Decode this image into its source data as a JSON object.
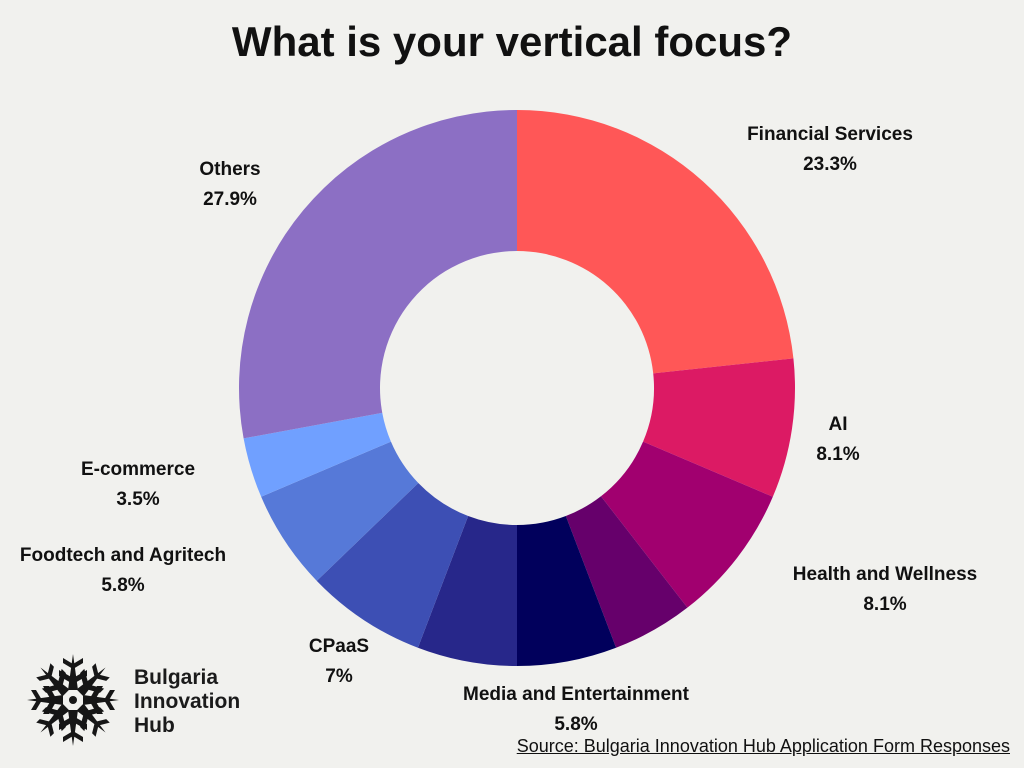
{
  "chart_data": {
    "type": "pie",
    "title": "What is your vertical focus?",
    "labels": [
      "Financial Services",
      "AI",
      "Health and Wellness",
      "",
      "Media and Entertainment",
      "",
      "CPaaS",
      "Foodtech and Agritech",
      "E-commerce",
      "Others"
    ],
    "value_labels": [
      "23.3%",
      "8.1%",
      "8.1%",
      "",
      "5.8%",
      "",
      "7%",
      "5.8%",
      "3.5%",
      "27.9%"
    ],
    "values": [
      23.3,
      8.1,
      8.1,
      4.7,
      5.8,
      5.8,
      7.0,
      5.8,
      3.5,
      27.9
    ],
    "colors": [
      "#ff5757",
      "#dc1a64",
      "#a1006f",
      "#66006b",
      "#01005c",
      "#27278a",
      "#3d4fb4",
      "#5679d8",
      "#70a0ff",
      "#8c6fc4"
    ],
    "donut": true
  },
  "logo": {
    "line1": "Bulgaria",
    "line2": "Innovation",
    "line3": "Hub"
  },
  "source": "Source: Bulgaria Innovation Hub Application Form Responses"
}
